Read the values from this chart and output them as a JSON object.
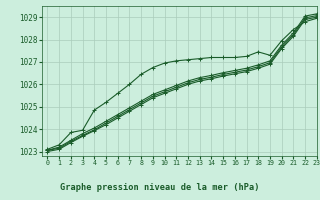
{
  "background_color": "#cceedd",
  "grid_color": "#aaccbb",
  "line_color": "#1a5c2a",
  "title": "Graphe pression niveau de la mer (hPa)",
  "xlim": [
    -0.5,
    23
  ],
  "ylim": [
    1022.8,
    1029.5
  ],
  "yticks": [
    1023,
    1024,
    1025,
    1026,
    1027,
    1028,
    1029
  ],
  "xticks": [
    0,
    1,
    2,
    3,
    4,
    5,
    6,
    7,
    8,
    9,
    10,
    11,
    12,
    13,
    14,
    15,
    16,
    17,
    18,
    19,
    20,
    21,
    22,
    23
  ],
  "series": [
    [
      1023.1,
      1023.3,
      1023.85,
      1023.95,
      1024.85,
      1025.2,
      1025.6,
      1026.0,
      1026.45,
      1026.75,
      1026.95,
      1027.05,
      1027.1,
      1027.15,
      1027.2,
      1027.2,
      1027.2,
      1027.25,
      1027.45,
      1027.3,
      1027.95,
      1028.45,
      1028.8,
      1028.95
    ],
    [
      1023.05,
      1023.2,
      1023.5,
      1023.8,
      1024.05,
      1024.35,
      1024.65,
      1024.95,
      1025.25,
      1025.55,
      1025.75,
      1025.95,
      1026.15,
      1026.3,
      1026.4,
      1026.52,
      1026.62,
      1026.72,
      1026.87,
      1027.05,
      1027.75,
      1028.3,
      1029.05,
      1029.15
    ],
    [
      1023.05,
      1023.15,
      1023.45,
      1023.72,
      1023.97,
      1024.27,
      1024.57,
      1024.87,
      1025.17,
      1025.47,
      1025.67,
      1025.87,
      1026.07,
      1026.22,
      1026.32,
      1026.44,
      1026.54,
      1026.64,
      1026.79,
      1026.97,
      1027.67,
      1028.22,
      1028.97,
      1029.07
    ],
    [
      1023.0,
      1023.1,
      1023.4,
      1023.68,
      1023.93,
      1024.2,
      1024.5,
      1024.8,
      1025.1,
      1025.4,
      1025.6,
      1025.8,
      1026.0,
      1026.15,
      1026.25,
      1026.37,
      1026.47,
      1026.57,
      1026.72,
      1026.9,
      1027.6,
      1028.15,
      1028.9,
      1029.0
    ]
  ],
  "marker": "+",
  "markersize": 3.5,
  "linewidth": 0.8
}
